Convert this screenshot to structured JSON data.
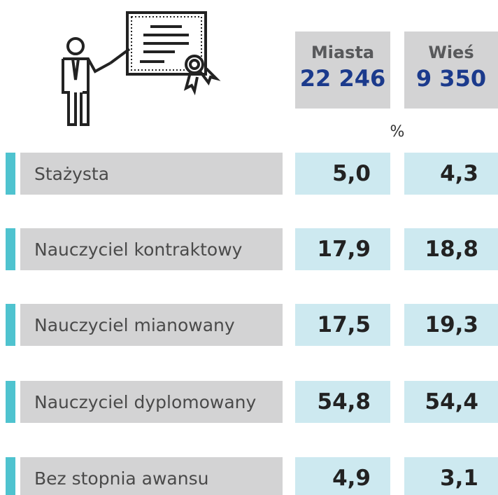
{
  "header": {
    "columns": [
      {
        "label": "Miasta",
        "count": "22 246"
      },
      {
        "label": "Wieś",
        "count": "9 350"
      }
    ],
    "unit": "%"
  },
  "table": {
    "rows": [
      {
        "label": "Stażysta",
        "values": [
          "5,0",
          "4,3"
        ]
      },
      {
        "label": "Nauczyciel kontraktowy",
        "values": [
          "17,9",
          "18,8"
        ]
      },
      {
        "label": "Nauczyciel mianowany",
        "values": [
          "17,5",
          "19,3"
        ]
      },
      {
        "label": "Nauczyciel dyplomowany",
        "values": [
          "54,8",
          "54,4"
        ]
      },
      {
        "label": "Bez stopnia awansu",
        "values": [
          "4,9",
          "3,1"
        ]
      }
    ]
  }
}
